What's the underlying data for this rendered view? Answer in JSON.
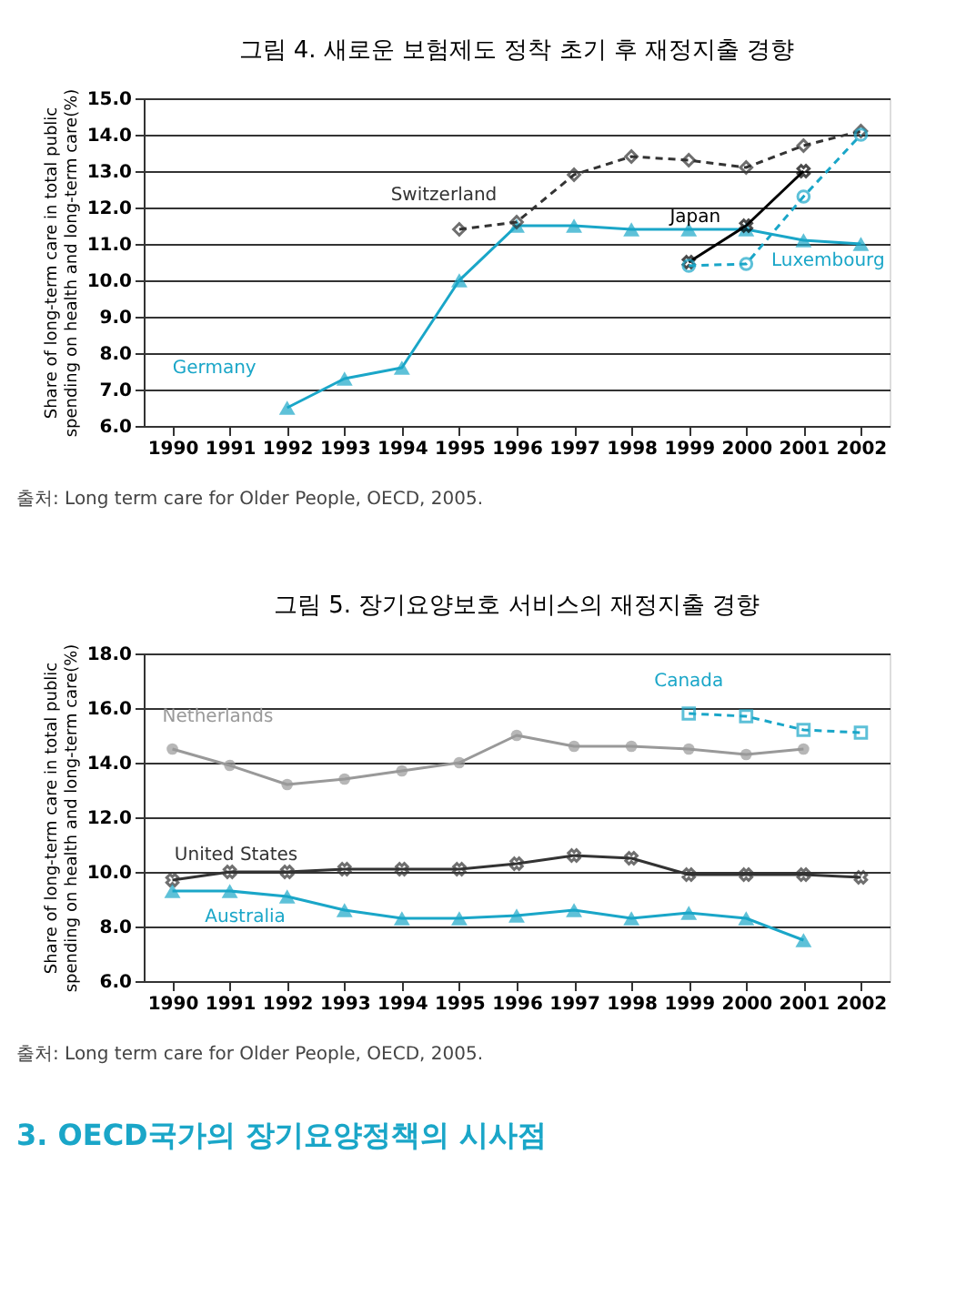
{
  "chart_data": [
    {
      "type": "line",
      "title": "그림 4. 새로운 보험제도 정착 초기 후 재정지출 경향",
      "ylabel": "Share of long-term care in total public spending on health and long-term care(%)",
      "categories": [
        "1990",
        "1991",
        "1992",
        "1993",
        "1994",
        "1995",
        "1996",
        "1997",
        "1998",
        "1999",
        "2000",
        "2001",
        "2002"
      ],
      "series": [
        {
          "name": "Germany",
          "color": "#1aa6c8",
          "marker": "triangle",
          "line_style": "solid",
          "values": [
            null,
            null,
            6.5,
            7.3,
            7.6,
            10.0,
            11.5,
            11.5,
            11.4,
            11.4,
            11.4,
            11.1,
            11.0
          ]
        },
        {
          "name": "Switzerland",
          "color": "#333333",
          "marker": "diamond",
          "line_style": "dashed",
          "values": [
            null,
            null,
            null,
            null,
            null,
            11.4,
            11.6,
            12.9,
            13.4,
            13.3,
            13.1,
            13.7,
            14.1
          ]
        },
        {
          "name": "Japan",
          "color": "#000000",
          "marker": "cross",
          "line_style": "solid",
          "values": [
            null,
            null,
            null,
            null,
            null,
            null,
            null,
            null,
            null,
            10.5,
            11.5,
            13.0,
            null
          ]
        },
        {
          "name": "Luxembourg",
          "color": "#1aa6c8",
          "marker": "circle",
          "line_style": "dashed",
          "values": [
            null,
            null,
            null,
            null,
            null,
            null,
            null,
            null,
            null,
            10.4,
            10.45,
            12.3,
            14.0
          ]
        }
      ],
      "ylim": [
        6,
        15
      ],
      "yticks": [
        {
          "value": 6,
          "label": "6.0"
        },
        {
          "value": 7,
          "label": "7.0"
        },
        {
          "value": 8,
          "label": "8.0"
        },
        {
          "value": 9,
          "label": "9.0"
        },
        {
          "value": 10,
          "label": "10.0"
        },
        {
          "value": 11,
          "label": "11.0"
        },
        {
          "value": 12,
          "label": "12.0"
        },
        {
          "value": 13,
          "label": "13.0"
        },
        {
          "value": 14,
          "label": "14.0"
        },
        {
          "value": 15,
          "label": "15.0"
        }
      ],
      "grid": "y",
      "annotations": [
        "출처: Long term care for Older People, OECD, 2005."
      ]
    },
    {
      "type": "line",
      "title": "그림 5. 장기요양보호 서비스의 재정지출 경향",
      "ylabel": "Share of long-term care in total public spending on health and long-term care(%)",
      "categories": [
        "1990",
        "1991",
        "1992",
        "1993",
        "1994",
        "1995",
        "1996",
        "1997",
        "1998",
        "1999",
        "2000",
        "2001",
        "2002"
      ],
      "series": [
        {
          "name": "Canada",
          "color": "#1aa6c8",
          "marker": "square",
          "line_style": "dashed",
          "values": [
            null,
            null,
            null,
            null,
            null,
            null,
            null,
            null,
            null,
            15.8,
            15.7,
            15.2,
            15.1
          ]
        },
        {
          "name": "Netherlands",
          "color": "#999999",
          "marker": "circle",
          "line_style": "solid",
          "values": [
            14.5,
            13.9,
            13.2,
            13.4,
            13.7,
            14.0,
            15.0,
            14.6,
            14.6,
            14.5,
            14.3,
            14.5,
            null
          ]
        },
        {
          "name": "United States",
          "color": "#333333",
          "marker": "cross",
          "line_style": "solid",
          "values": [
            9.7,
            10.0,
            10.0,
            10.1,
            10.1,
            10.1,
            10.3,
            10.6,
            10.5,
            9.9,
            9.9,
            9.9,
            9.8
          ]
        },
        {
          "name": "Australia",
          "color": "#1aa6c8",
          "marker": "triangle",
          "line_style": "solid",
          "values": [
            9.3,
            9.3,
            9.1,
            8.6,
            8.3,
            8.3,
            8.4,
            8.6,
            8.3,
            8.5,
            8.3,
            7.5,
            null
          ]
        }
      ],
      "ylim": [
        6,
        18
      ],
      "yticks": [
        {
          "value": 6,
          "label": "6.0"
        },
        {
          "value": 8,
          "label": "8.0"
        },
        {
          "value": 10,
          "label": "10.0"
        },
        {
          "value": 12,
          "label": "12.0"
        },
        {
          "value": 14,
          "label": "14.0"
        },
        {
          "value": 16,
          "label": "16.0"
        },
        {
          "value": 18,
          "label": "18.0"
        }
      ],
      "grid": "y",
      "annotations": [
        "출처: Long term care for Older People, OECD, 2005.",
        "3. OECD국가의 장기요양정책의 시사점"
      ]
    }
  ]
}
